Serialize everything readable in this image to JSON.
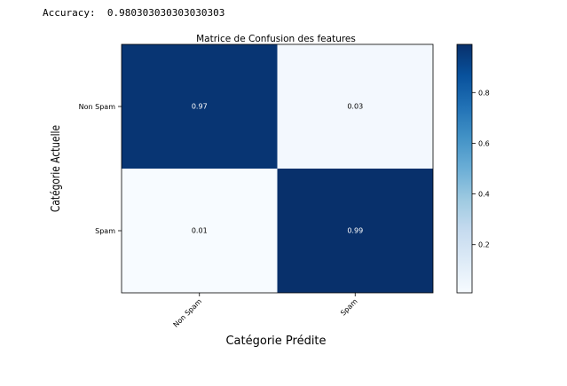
{
  "header": {
    "accuracy_label": "Accuracy:",
    "accuracy_value": "0.980303030303030303"
  },
  "chart_data": {
    "type": "heatmap",
    "title": "Matrice de Confusion des features",
    "xlabel": "Catégorie Prédite",
    "ylabel": "Catégorie Actuelle",
    "x_categories": [
      "Non Spam",
      "Spam"
    ],
    "y_categories": [
      "Non Spam",
      "Spam"
    ],
    "values": [
      [
        0.97,
        0.03
      ],
      [
        0.01,
        0.99
      ]
    ],
    "value_labels": [
      [
        "0.97",
        "0.03"
      ],
      [
        "0.01",
        "0.99"
      ]
    ],
    "colorbar": {
      "range": [
        0.01,
        0.99
      ],
      "ticks": [
        0.2,
        0.4,
        0.6,
        0.8
      ],
      "tick_labels": [
        "0.2",
        "0.4",
        "0.6",
        "0.8"
      ],
      "colormap": "Blues",
      "color_low": "#f7fbff",
      "color_high": "#08306b"
    },
    "grid": false
  }
}
